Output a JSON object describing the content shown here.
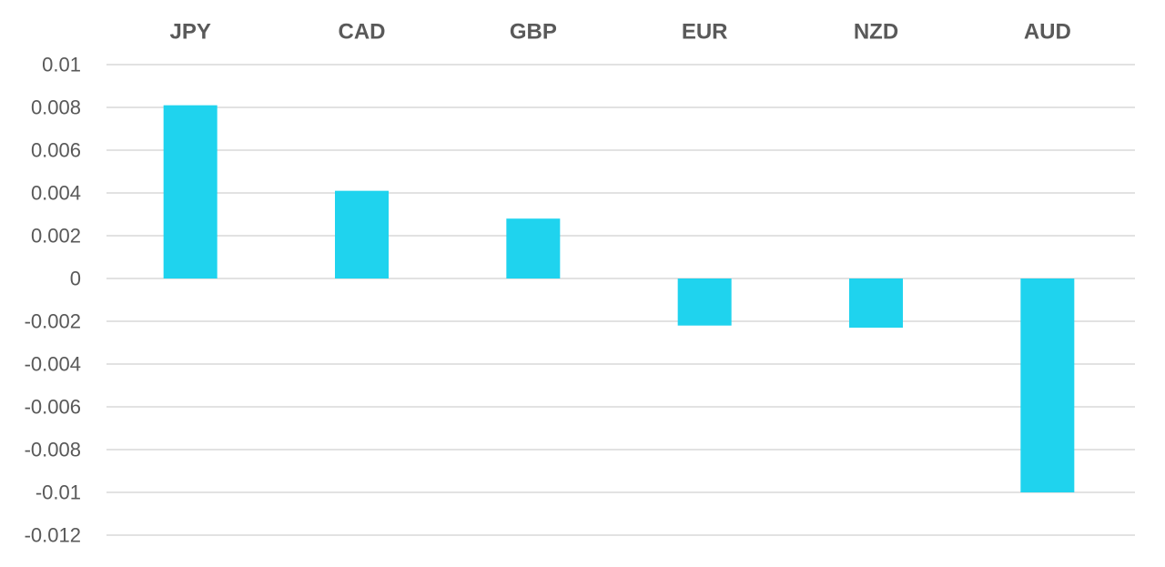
{
  "chart_data": {
    "type": "bar",
    "categories": [
      "JPY",
      "CAD",
      "GBP",
      "EUR",
      "NZD",
      "AUD"
    ],
    "values": [
      0.0081,
      0.0041,
      0.0028,
      -0.0022,
      -0.0023,
      -0.01
    ],
    "ylim": [
      -0.012,
      0.01
    ],
    "yticks": [
      0.01,
      0.008,
      0.006,
      0.004,
      0.002,
      0,
      -0.002,
      -0.004,
      -0.006,
      -0.008,
      -0.01,
      -0.012
    ],
    "ytick_labels": [
      "0.01",
      "0.008",
      "0.006",
      "0.004",
      "0.002",
      "0",
      "-0.002",
      "-0.004",
      "-0.006",
      "-0.008",
      "-0.01",
      "-0.012"
    ],
    "x_axis_position": "top",
    "grid": true,
    "legend": "none",
    "bar_color": "#1fd3ee",
    "grid_color": "#d9d9d9",
    "text_color": "#595959"
  }
}
